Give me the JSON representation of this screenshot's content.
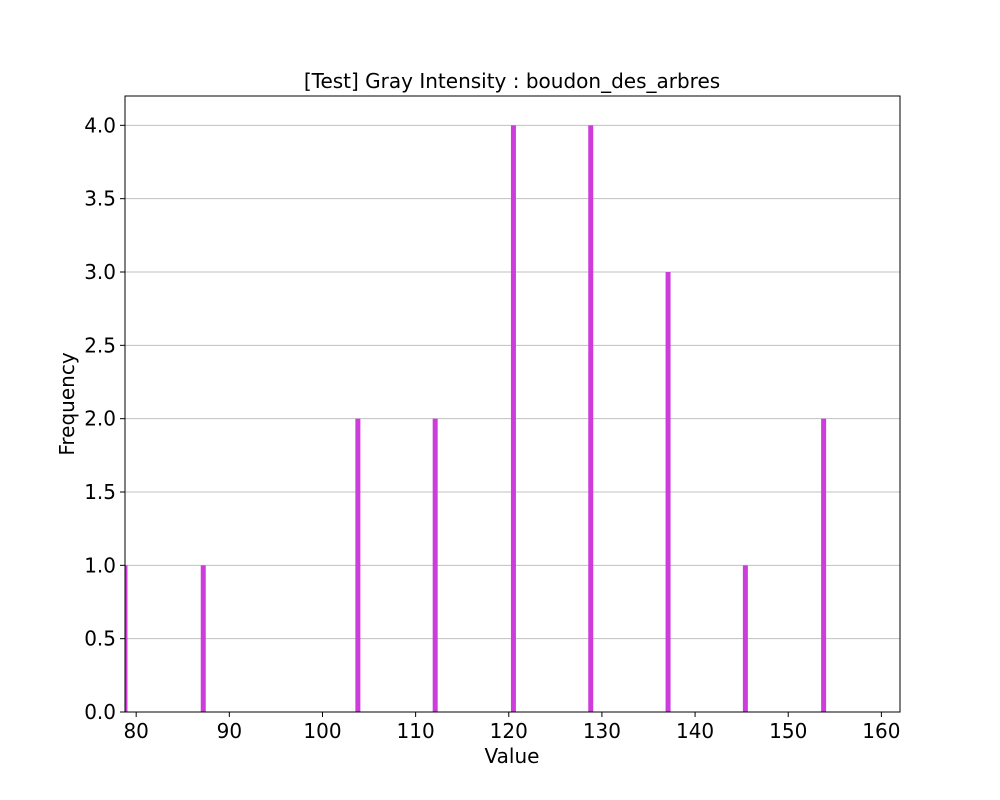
{
  "chart_data": {
    "type": "bar",
    "title": "[Test] Gray Intensity : boudon_des_arbres",
    "xlabel": "Value",
    "ylabel": "Frequency",
    "xlim": [
      78.8,
      162
    ],
    "ylim": [
      0,
      4.2
    ],
    "grid": {
      "y": true,
      "x": false
    },
    "bar_color": "#cc3ddb",
    "x": [
      78.8,
      87.2,
      103.8,
      112.1,
      120.5,
      128.8,
      137.1,
      145.4,
      153.8
    ],
    "values": [
      1,
      1,
      2,
      2,
      4,
      4,
      3,
      1,
      2
    ],
    "xticks": [
      80,
      90,
      100,
      110,
      120,
      130,
      140,
      150,
      160
    ],
    "xtick_labels": [
      "80",
      "90",
      "100",
      "110",
      "120",
      "130",
      "140",
      "150",
      "160"
    ],
    "yticks": [
      0.0,
      0.5,
      1.0,
      1.5,
      2.0,
      2.5,
      3.0,
      3.5,
      4.0
    ],
    "ytick_labels": [
      "0.0",
      "0.5",
      "1.0",
      "1.5",
      "2.0",
      "2.5",
      "3.0",
      "3.5",
      "4.0"
    ]
  }
}
